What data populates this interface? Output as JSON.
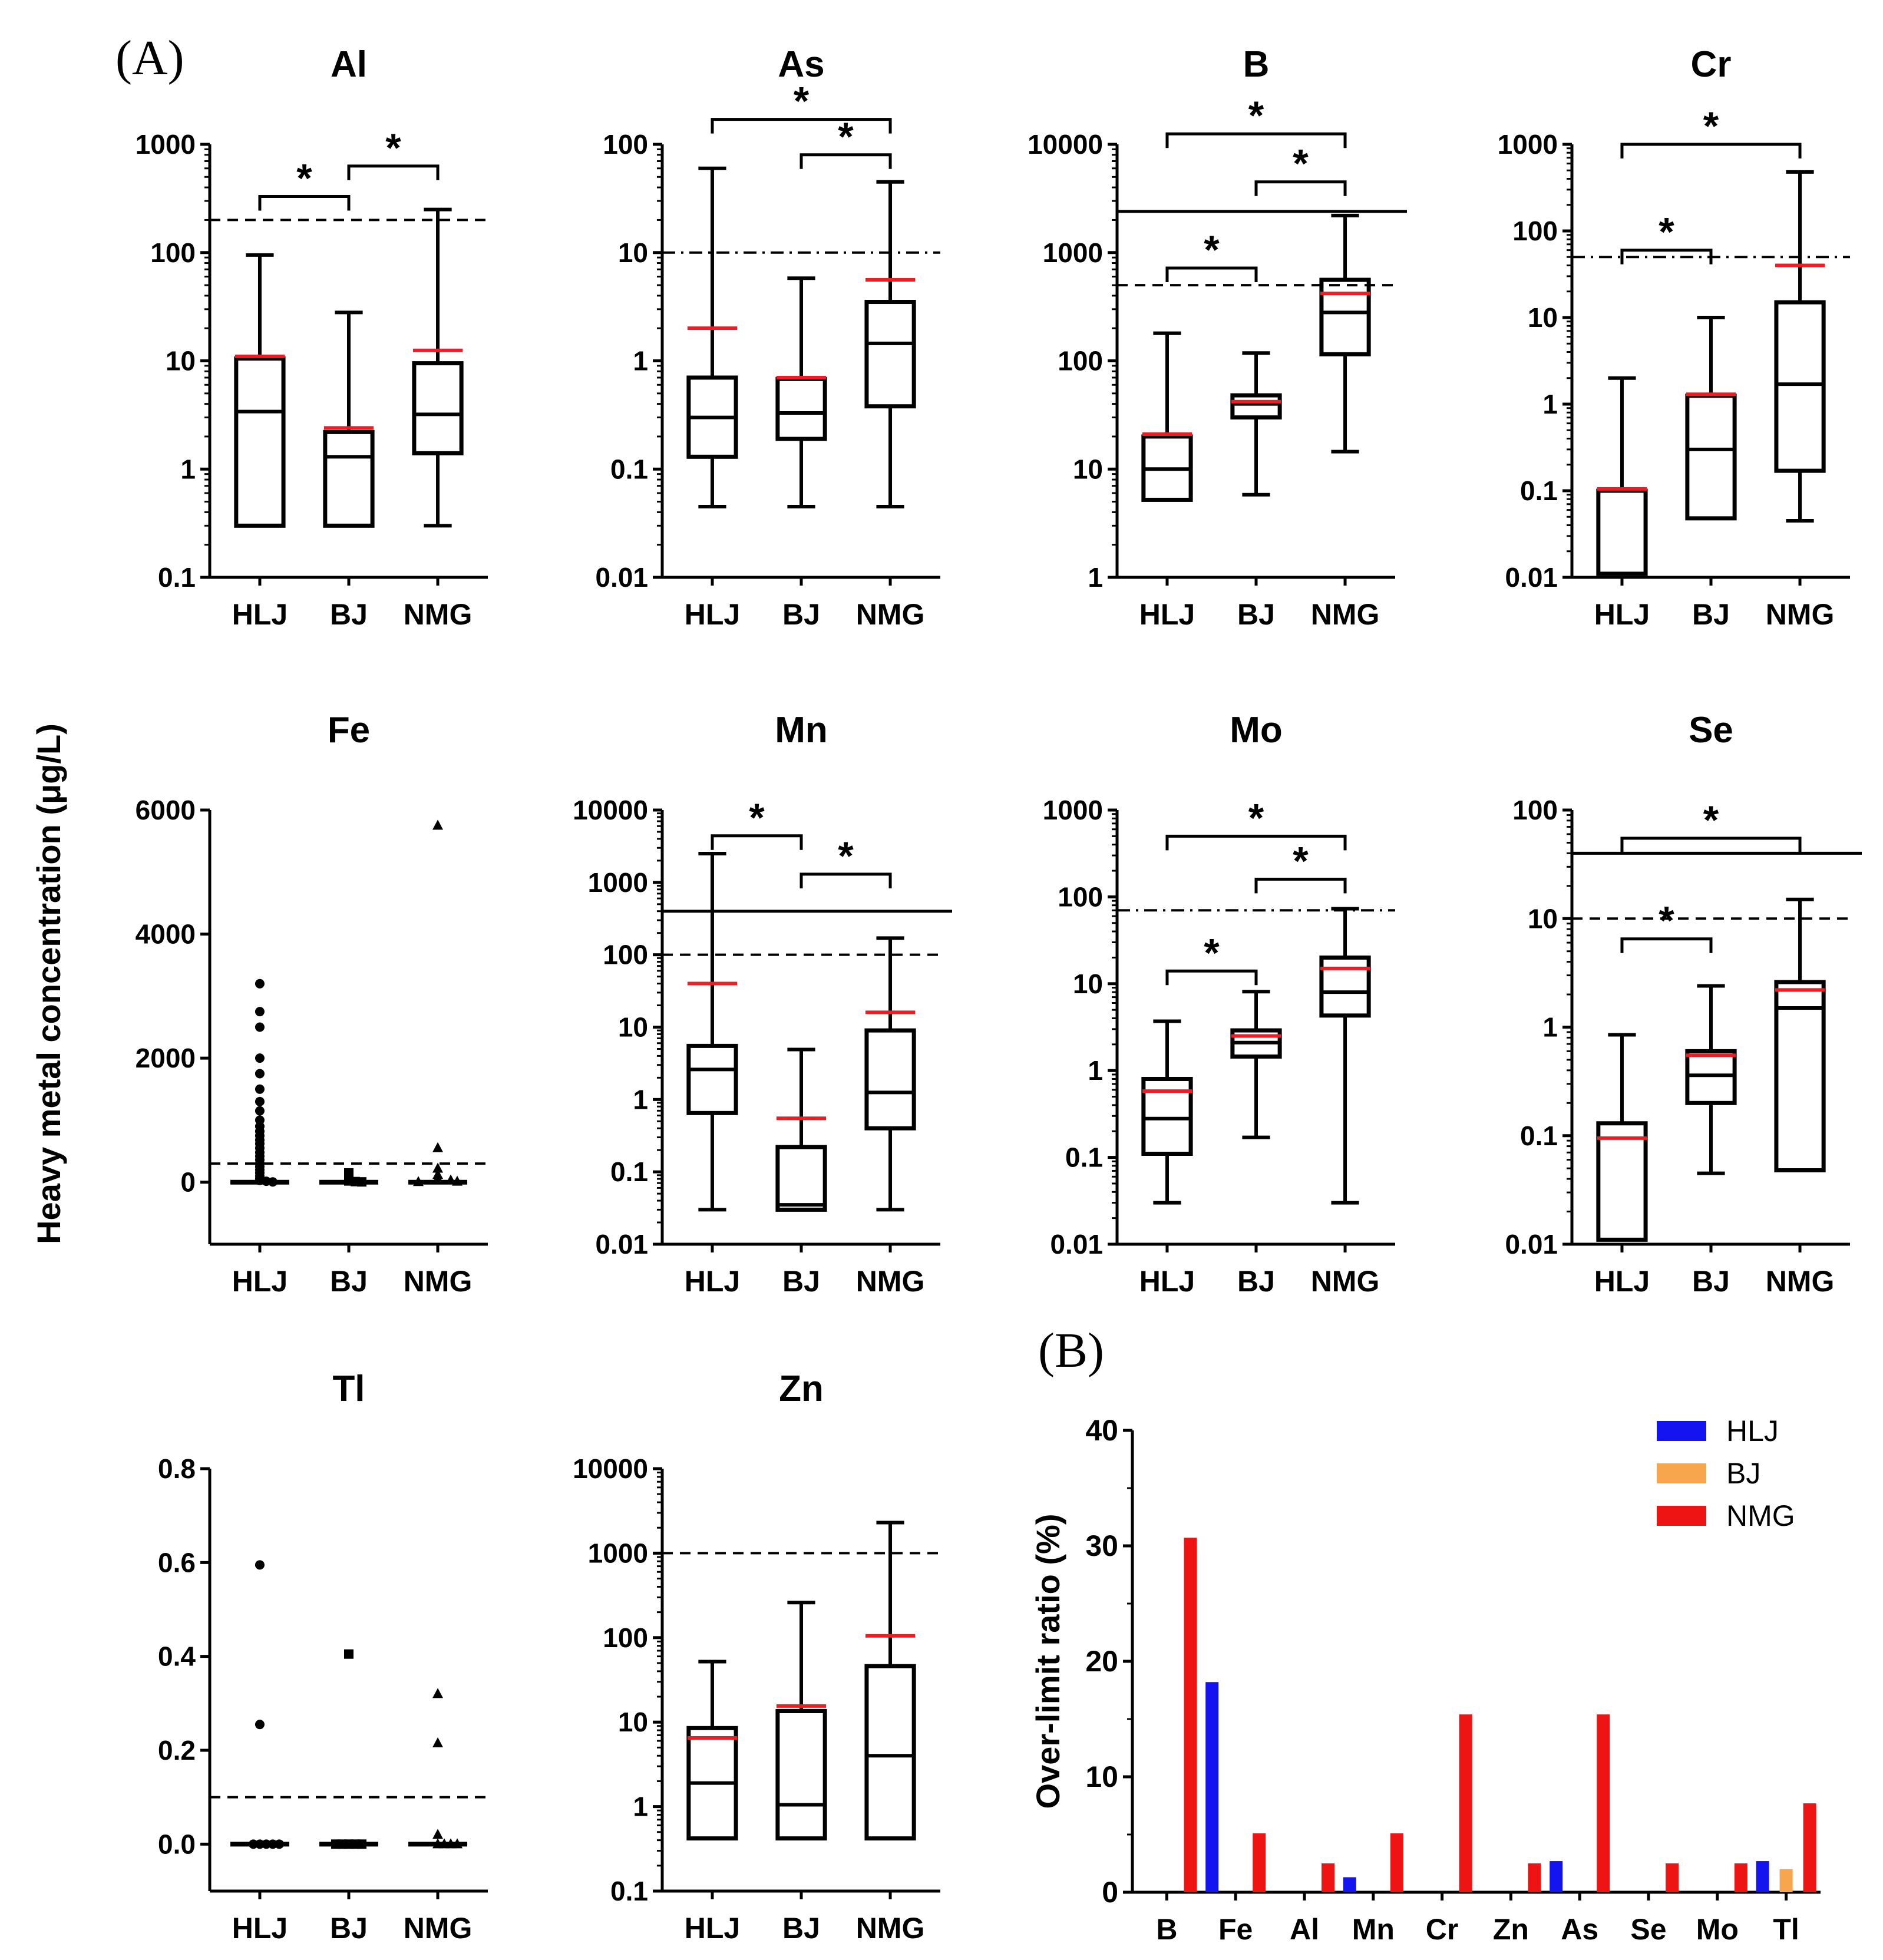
{
  "panel_labels": {
    "a": "(A)",
    "b": "(B)"
  },
  "shared_ylabel": "Heavy metal concentration (μg/L)",
  "colors": {
    "mean_line": "#ee1c25",
    "HLJ": "#1414f0",
    "BJ": "#f7a64d",
    "NMG": "#ee1414",
    "stroke": "#000000"
  },
  "chart_data": [
    {
      "metal": "Al",
      "title": "Al",
      "type": "box",
      "scale": "log",
      "categories": [
        "HLJ",
        "BJ",
        "NMG"
      ],
      "ylim": [
        0.1,
        1000
      ],
      "ticks": [
        {
          "v": 0.1,
          "label": "0.1"
        },
        {
          "v": 1,
          "label": "1"
        },
        {
          "v": 10,
          "label": "10"
        },
        {
          "v": 100,
          "label": "100"
        },
        {
          "v": 1000,
          "label": "1000"
        }
      ],
      "boxes": [
        {
          "min": 0.3,
          "q1": 0.3,
          "median": 3.4,
          "q3": 10.5,
          "max": 95,
          "mean": 11
        },
        {
          "min": 0.3,
          "q1": 0.3,
          "median": 1.3,
          "q3": 2.2,
          "max": 28,
          "mean": 2.4
        },
        {
          "min": 0.3,
          "q1": 1.4,
          "median": 3.2,
          "q3": 9.5,
          "max": 250,
          "mean": 12.5
        }
      ],
      "refs": [
        {
          "value": 200,
          "style": "dash"
        }
      ],
      "brackets": [
        {
          "from": 0,
          "to": 1,
          "at": 330,
          "label": "*"
        },
        {
          "from": 1,
          "to": 2,
          "at": 630,
          "label": "*"
        }
      ]
    },
    {
      "metal": "As",
      "title": "As",
      "type": "box",
      "scale": "log",
      "categories": [
        "HLJ",
        "BJ",
        "NMG"
      ],
      "ylim": [
        0.01,
        100
      ],
      "ticks": [
        {
          "v": 0.01,
          "label": "0.01"
        },
        {
          "v": 0.1,
          "label": "0.1"
        },
        {
          "v": 1,
          "label": "1"
        },
        {
          "v": 10,
          "label": "10"
        },
        {
          "v": 100,
          "label": "100"
        }
      ],
      "boxes": [
        {
          "min": 0.045,
          "q1": 0.13,
          "median": 0.3,
          "q3": 0.7,
          "max": 60,
          "mean": 2.0
        },
        {
          "min": 0.045,
          "q1": 0.19,
          "median": 0.33,
          "q3": 0.68,
          "max": 5.8,
          "mean": 0.7
        },
        {
          "min": 0.045,
          "q1": 0.38,
          "median": 1.45,
          "q3": 3.5,
          "max": 45,
          "mean": 5.6
        }
      ],
      "refs": [
        {
          "value": 10,
          "style": "dashdot"
        }
      ],
      "brackets": [
        {
          "from": 0,
          "to": 2,
          "at": 170,
          "label": "*"
        },
        {
          "from": 1,
          "to": 2,
          "at": 80,
          "label": "*"
        }
      ]
    },
    {
      "metal": "B",
      "title": "B",
      "type": "box",
      "scale": "log",
      "categories": [
        "HLJ",
        "BJ",
        "NMG"
      ],
      "ylim": [
        1,
        10000
      ],
      "ticks": [
        {
          "v": 1,
          "label": "1"
        },
        {
          "v": 10,
          "label": "10"
        },
        {
          "v": 100,
          "label": "100"
        },
        {
          "v": 1000,
          "label": "1000"
        },
        {
          "v": 10000,
          "label": "10000"
        }
      ],
      "boxes": [
        {
          "min": 5.2,
          "q1": 5.2,
          "median": 10,
          "q3": 20,
          "max": 180,
          "mean": 21
        },
        {
          "min": 5.8,
          "q1": 30,
          "median": 40,
          "q3": 48,
          "max": 118,
          "mean": 42
        },
        {
          "min": 14.5,
          "q1": 115,
          "median": 280,
          "q3": 560,
          "max": 2200,
          "mean": 420
        }
      ],
      "refs": [
        {
          "value": 2400,
          "style": "solid"
        },
        {
          "value": 500,
          "style": "dash"
        }
      ],
      "brackets": [
        {
          "from": 0,
          "to": 2,
          "at": 12500,
          "label": "*"
        },
        {
          "from": 1,
          "to": 2,
          "at": 4500,
          "label": "*"
        },
        {
          "from": 0,
          "to": 1,
          "at": 720,
          "label": "*"
        }
      ]
    },
    {
      "metal": "Cr",
      "title": "Cr",
      "type": "box",
      "scale": "log",
      "categories": [
        "HLJ",
        "BJ",
        "NMG"
      ],
      "ylim": [
        0.01,
        1000
      ],
      "ticks": [
        {
          "v": 0.01,
          "label": "0.01"
        },
        {
          "v": 0.1,
          "label": "0.1"
        },
        {
          "v": 1,
          "label": "1"
        },
        {
          "v": 10,
          "label": "10"
        },
        {
          "v": 100,
          "label": "100"
        },
        {
          "v": 1000,
          "label": "1000"
        }
      ],
      "boxes": [
        {
          "min": 0.011,
          "q1": 0.011,
          "median": 0.011,
          "q3": 0.1,
          "max": 2.0,
          "mean": 0.105
        },
        {
          "min": 0.048,
          "q1": 0.048,
          "median": 0.3,
          "q3": 1.25,
          "max": 10,
          "mean": 1.3
        },
        {
          "min": 0.045,
          "q1": 0.17,
          "median": 1.7,
          "q3": 15,
          "max": 480,
          "mean": 40
        }
      ],
      "refs": [
        {
          "value": 50,
          "style": "dashdot"
        }
      ],
      "brackets": [
        {
          "from": 0,
          "to": 2,
          "at": 1000,
          "label": "*"
        },
        {
          "from": 0,
          "to": 1,
          "at": 60,
          "label": "*"
        }
      ]
    },
    {
      "metal": "Fe",
      "title": "Fe",
      "type": "scatter",
      "scale": "linear",
      "categories": [
        "HLJ",
        "BJ",
        "NMG"
      ],
      "ylim": [
        -1000,
        6000
      ],
      "ticks": [
        {
          "v": 0,
          "label": "0"
        },
        {
          "v": 2000,
          "label": "2000"
        },
        {
          "v": 4000,
          "label": "4000"
        },
        {
          "v": 6000,
          "label": "6000"
        }
      ],
      "markers": [
        "circle",
        "square",
        "triangle"
      ],
      "points": [
        [
          3200,
          2750,
          2500,
          2000,
          1750,
          1500,
          1300,
          1150,
          1000,
          900,
          820,
          750,
          680,
          620,
          550,
          480,
          420,
          360,
          300,
          250,
          200,
          150,
          100,
          60,
          30,
          15,
          5
        ],
        [
          150,
          80,
          40,
          20,
          10,
          5
        ],
        [
          5750,
          550,
          220,
          120,
          60,
          30,
          10,
          5
        ]
      ],
      "refs": [
        {
          "value": 300,
          "style": "dash"
        }
      ]
    },
    {
      "metal": "Mn",
      "title": "Mn",
      "type": "box",
      "scale": "log",
      "categories": [
        "HLJ",
        "BJ",
        "NMG"
      ],
      "ylim": [
        0.01,
        10000
      ],
      "ticks": [
        {
          "v": 0.01,
          "label": "0.01"
        },
        {
          "v": 0.1,
          "label": "0.1"
        },
        {
          "v": 1,
          "label": "1"
        },
        {
          "v": 10,
          "label": "10"
        },
        {
          "v": 100,
          "label": "100"
        },
        {
          "v": 1000,
          "label": "1000"
        },
        {
          "v": 10000,
          "label": "10000"
        }
      ],
      "boxes": [
        {
          "min": 0.03,
          "q1": 0.65,
          "median": 2.6,
          "q3": 5.5,
          "max": 2500,
          "mean": 40
        },
        {
          "min": 0.03,
          "q1": 0.03,
          "median": 0.035,
          "q3": 0.22,
          "max": 4.9,
          "mean": 0.55
        },
        {
          "min": 0.03,
          "q1": 0.4,
          "median": 1.25,
          "q3": 9,
          "max": 170,
          "mean": 16
        }
      ],
      "refs": [
        {
          "value": 400,
          "style": "solid"
        },
        {
          "value": 100,
          "style": "dash"
        }
      ],
      "brackets": [
        {
          "from": 0,
          "to": 1,
          "at": 4400,
          "label": "*"
        },
        {
          "from": 1,
          "to": 2,
          "at": 1300,
          "label": "*"
        }
      ]
    },
    {
      "metal": "Mo",
      "title": "Mo",
      "type": "box",
      "scale": "log",
      "categories": [
        "HLJ",
        "BJ",
        "NMG"
      ],
      "ylim": [
        0.01,
        1000
      ],
      "ticks": [
        {
          "v": 0.01,
          "label": "0.01"
        },
        {
          "v": 0.1,
          "label": "0.1"
        },
        {
          "v": 1,
          "label": "1"
        },
        {
          "v": 10,
          "label": "10"
        },
        {
          "v": 100,
          "label": "100"
        },
        {
          "v": 1000,
          "label": "1000"
        }
      ],
      "boxes": [
        {
          "min": 0.03,
          "q1": 0.11,
          "median": 0.28,
          "q3": 0.8,
          "max": 3.7,
          "mean": 0.58
        },
        {
          "min": 0.17,
          "q1": 1.45,
          "median": 2.1,
          "q3": 2.9,
          "max": 8.1,
          "mean": 2.5
        },
        {
          "min": 0.03,
          "q1": 4.3,
          "median": 8,
          "q3": 20,
          "max": 73,
          "mean": 15
        }
      ],
      "refs": [
        {
          "value": 70,
          "style": "dashdot"
        }
      ],
      "brackets": [
        {
          "from": 0,
          "to": 2,
          "at": 500,
          "label": "*"
        },
        {
          "from": 1,
          "to": 2,
          "at": 160,
          "label": "*"
        },
        {
          "from": 0,
          "to": 1,
          "at": 14,
          "label": "*"
        }
      ]
    },
    {
      "metal": "Se",
      "title": "Se",
      "type": "box",
      "scale": "log",
      "categories": [
        "HLJ",
        "BJ",
        "NMG"
      ],
      "ylim": [
        0.01,
        100
      ],
      "ticks": [
        {
          "v": 0.01,
          "label": "0.01"
        },
        {
          "v": 0.1,
          "label": "0.1"
        },
        {
          "v": 1,
          "label": "1"
        },
        {
          "v": 10,
          "label": "10"
        },
        {
          "v": 100,
          "label": "100"
        }
      ],
      "boxes": [
        {
          "min": 0.011,
          "q1": 0.011,
          "median": 0.011,
          "q3": 0.13,
          "max": 0.85,
          "mean": 0.095
        },
        {
          "min": 0.045,
          "q1": 0.2,
          "median": 0.36,
          "q3": 0.6,
          "max": 2.4,
          "mean": 0.55
        },
        {
          "min": 0.048,
          "q1": 0.048,
          "median": 1.5,
          "q3": 2.6,
          "max": 15,
          "mean": 2.2
        }
      ],
      "refs": [
        {
          "value": 40,
          "style": "solid"
        },
        {
          "value": 10,
          "style": "dash"
        }
      ],
      "brackets": [
        {
          "from": 0,
          "to": 2,
          "at": 55,
          "label": "*"
        },
        {
          "from": 0,
          "to": 1,
          "at": 6.5,
          "label": "*"
        }
      ]
    },
    {
      "metal": "Tl",
      "title": "Tl",
      "type": "scatter",
      "scale": "linear",
      "categories": [
        "HLJ",
        "BJ",
        "NMG"
      ],
      "ylim": [
        -0.1,
        0.8
      ],
      "ticks": [
        {
          "v": 0.0,
          "label": "0.0"
        },
        {
          "v": 0.2,
          "label": "0.2"
        },
        {
          "v": 0.4,
          "label": "0.4"
        },
        {
          "v": 0.6,
          "label": "0.6"
        },
        {
          "v": 0.8,
          "label": "0.8"
        }
      ],
      "markers": [
        "circle",
        "square",
        "triangle"
      ],
      "points": [
        [
          0.595,
          0.255,
          0.0,
          0.0,
          0.0,
          0.0,
          0.0
        ],
        [
          0.405,
          0.0,
          0.0,
          0.0,
          0.0,
          0.0
        ],
        [
          0.32,
          0.215,
          0.02,
          0.0,
          0.0,
          0.0,
          0.0
        ]
      ],
      "refs": [
        {
          "value": 0.1,
          "style": "dash"
        }
      ]
    },
    {
      "metal": "Zn",
      "title": "Zn",
      "type": "box",
      "scale": "log",
      "categories": [
        "HLJ",
        "BJ",
        "NMG"
      ],
      "ylim": [
        0.1,
        10000
      ],
      "ticks": [
        {
          "v": 0.1,
          "label": "0.1"
        },
        {
          "v": 1,
          "label": "1"
        },
        {
          "v": 10,
          "label": "10"
        },
        {
          "v": 100,
          "label": "100"
        },
        {
          "v": 1000,
          "label": "1000"
        },
        {
          "v": 10000,
          "label": "10000"
        }
      ],
      "boxes": [
        {
          "min": 0.42,
          "q1": 0.42,
          "median": 1.9,
          "q3": 8.5,
          "max": 52,
          "mean": 6.5
        },
        {
          "min": 0.42,
          "q1": 0.42,
          "median": 1.05,
          "q3": 13.5,
          "max": 260,
          "mean": 15.5
        },
        {
          "min": 0.42,
          "q1": 0.42,
          "median": 4,
          "q3": 46,
          "max": 2300,
          "mean": 105
        }
      ],
      "refs": [
        {
          "value": 1000,
          "style": "dash"
        }
      ],
      "brackets": []
    },
    {
      "type": "bar",
      "title": "",
      "ylabel": "Over-limit ratio (%)",
      "xlabel": "",
      "categories": [
        "B",
        "Fe",
        "Al",
        "Mn",
        "Cr",
        "Zn",
        "As",
        "Se",
        "Mo",
        "Tl"
      ],
      "ylim": [
        0,
        40
      ],
      "ticks": [
        {
          "v": 0,
          "label": "0"
        },
        {
          "v": 10,
          "label": "10"
        },
        {
          "v": 20,
          "label": "20"
        },
        {
          "v": 30,
          "label": "30"
        },
        {
          "v": 40,
          "label": "40"
        }
      ],
      "legend_position": "top-right",
      "series": [
        {
          "name": "HLJ",
          "values": [
            0,
            18.2,
            0,
            1.3,
            0,
            0,
            2.7,
            0,
            0,
            2.7
          ]
        },
        {
          "name": "BJ",
          "values": [
            0,
            0,
            0,
            0,
            0,
            0,
            0,
            0,
            0,
            2.0
          ]
        },
        {
          "name": "NMG",
          "values": [
            30.7,
            5.1,
            2.5,
            5.1,
            15.4,
            2.5,
            15.4,
            2.5,
            2.5,
            7.7
          ]
        }
      ]
    }
  ]
}
